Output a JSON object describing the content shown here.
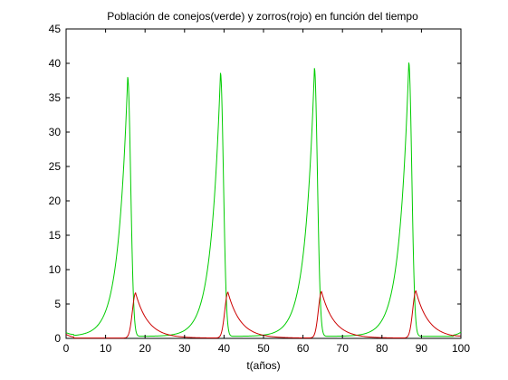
{
  "chart_data": {
    "type": "line",
    "title": "Población de conejos(verde) y zorros(rojo) en función del tiempo",
    "xlabel": "t(años)",
    "ylabel": "",
    "xlim": [
      0,
      100
    ],
    "ylim": [
      0,
      45
    ],
    "xticks": [
      "0",
      "10",
      "20",
      "30",
      "40",
      "50",
      "60",
      "70",
      "80",
      "90",
      "100"
    ],
    "yticks": [
      "0",
      "5",
      "10",
      "15",
      "20",
      "25",
      "30",
      "35",
      "40",
      "45"
    ],
    "grid": false,
    "legend": "none",
    "series": [
      {
        "color": "#00cc00",
        "peaks": [
          {
            "t": 15.6,
            "v": 38.0
          },
          {
            "t": 39.1,
            "v": 38.6
          },
          {
            "t": 62.9,
            "v": 39.3
          },
          {
            "t": 86.8,
            "v": 40.1
          }
        ],
        "baseline": 0.3,
        "start": 0.8,
        "end": 0.9
      },
      {
        "color": "#cc0000",
        "peaks": [
          {
            "t": 17.6,
            "v": 6.6
          },
          {
            "t": 41.0,
            "v": 6.7
          },
          {
            "t": 64.7,
            "v": 6.8
          },
          {
            "t": 88.6,
            "v": 6.9
          }
        ],
        "baseline": 0.05,
        "start": 0.6,
        "end": 0.15
      }
    ]
  }
}
